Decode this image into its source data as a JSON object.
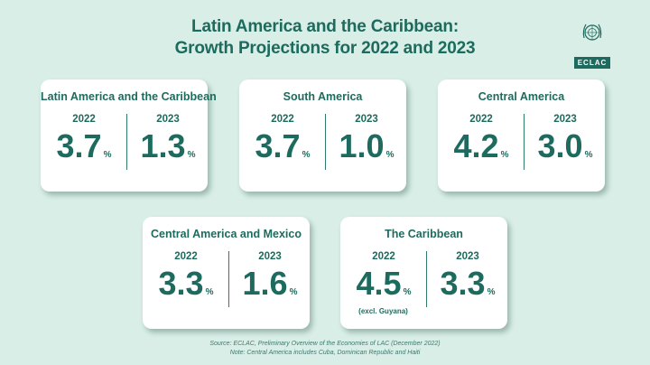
{
  "title": {
    "line1": "Latin America and the Caribbean:",
    "line2": "Growth Projections for 2022 and 2023"
  },
  "logo": {
    "word": "ECLAC",
    "icon": "un-emblem-icon"
  },
  "cards": [
    {
      "name": "Latin America and the Caribbean",
      "year1": "2022",
      "value1": "3.7",
      "year2": "2023",
      "value2": "1.3",
      "unit": "%"
    },
    {
      "name": "South America",
      "year1": "2022",
      "value1": "3.7",
      "year2": "2023",
      "value2": "1.0",
      "unit": "%"
    },
    {
      "name": "Central America",
      "year1": "2022",
      "value1": "4.2",
      "year2": "2023",
      "value2": "3.0",
      "unit": "%"
    },
    {
      "name": "Central America and Mexico",
      "year1": "2022",
      "value1": "3.3",
      "year2": "2023",
      "value2": "1.6",
      "unit": "%"
    },
    {
      "name": "The Caribbean",
      "year1": "2022",
      "value1": "4.5",
      "year2": "2023",
      "value2": "3.3",
      "unit": "%",
      "note": "(excl. Guyana)"
    }
  ],
  "footer": {
    "source": "Source: ECLAC, Preliminary Overview of the Economies of LAC (December 2022)",
    "note": "Note: Central America includes Cuba, Dominican Republic and Haiti"
  },
  "colors": {
    "background": "#d8eee6",
    "accent": "#1d6b5e",
    "card": "#ffffff"
  }
}
